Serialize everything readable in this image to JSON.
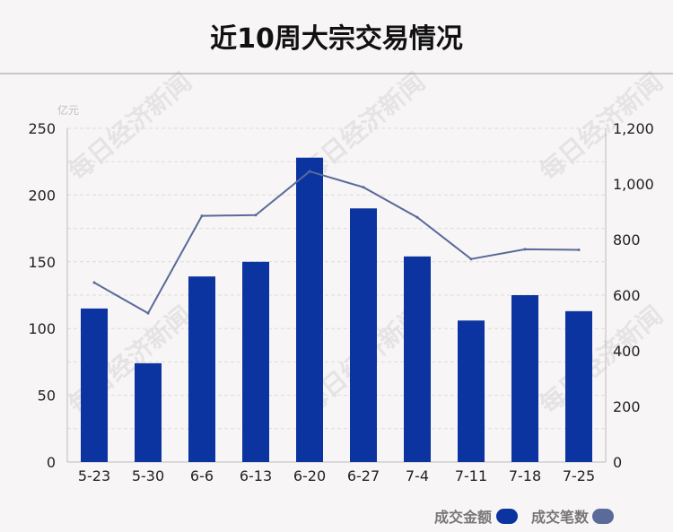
{
  "title": "近10周大宗交易情况",
  "unit_label": "亿元",
  "watermark": "每日经济新闻",
  "colors": {
    "bar": "#0b34a0",
    "line": "#5a6a99",
    "axis_text": "#222222",
    "grid": "#e0dada"
  },
  "legend": {
    "amount_label": "成交金额",
    "count_label": "成交笔数"
  },
  "chart_data": {
    "type": "bar",
    "categories": [
      "5-23",
      "5-30",
      "6-6",
      "6-13",
      "6-20",
      "6-27",
      "7-4",
      "7-11",
      "7-18",
      "7-25"
    ],
    "series": [
      {
        "name": "成交金额",
        "type": "bar",
        "axis": "left",
        "values": [
          115,
          74,
          139,
          150,
          228,
          190,
          154,
          106,
          125,
          113
        ]
      },
      {
        "name": "成交笔数",
        "type": "line",
        "axis": "right",
        "values": [
          645,
          535,
          885,
          888,
          1045,
          988,
          880,
          730,
          765,
          763
        ]
      }
    ],
    "ylim_left": [
      0,
      250
    ],
    "yticks_left": [
      "0",
      "50",
      "100",
      "150",
      "200",
      "250"
    ],
    "ylim_right": [
      0,
      1200
    ],
    "yticks_right": [
      "0",
      "200",
      "400",
      "600",
      "800",
      "1,000",
      "1,200"
    ],
    "grid": true,
    "legend_position": "bottom-right"
  }
}
